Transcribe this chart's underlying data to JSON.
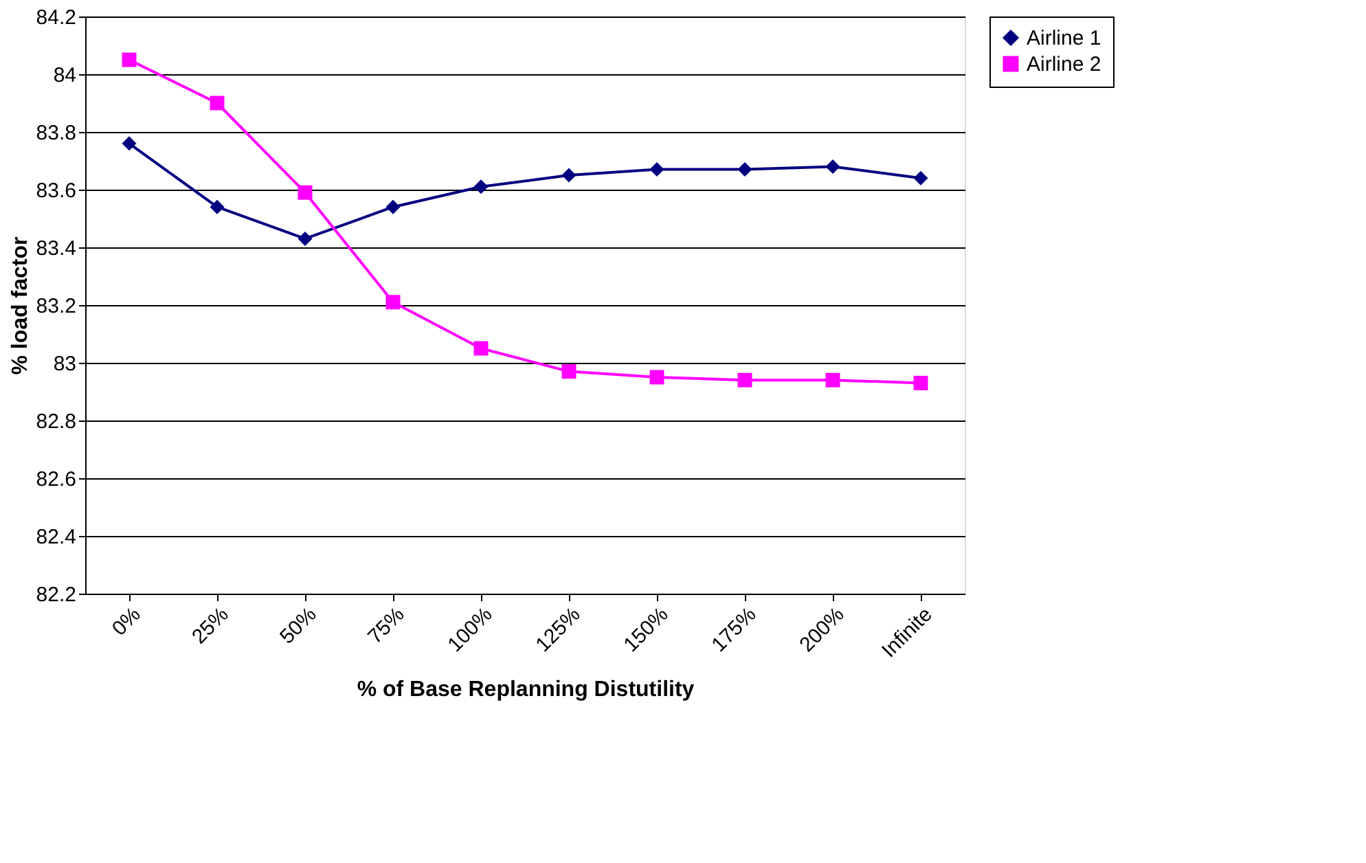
{
  "chart_data": {
    "type": "line",
    "xlabel": "% of Base Replanning Distutility",
    "ylabel": "% load factor",
    "categories": [
      "0%",
      "25%",
      "50%",
      "75%",
      "100%",
      "125%",
      "150%",
      "175%",
      "200%",
      "Infinite"
    ],
    "ylim": [
      82.2,
      84.2
    ],
    "yticks": [
      82.2,
      82.4,
      82.6,
      82.8,
      83,
      83.2,
      83.4,
      83.6,
      83.8,
      84,
      84.2
    ],
    "grid": "y",
    "legend": "right",
    "series": [
      {
        "name": "Airline 1",
        "color": "#000080",
        "marker": "diamond",
        "values": [
          83.76,
          83.54,
          83.43,
          83.54,
          83.61,
          83.65,
          83.67,
          83.67,
          83.68,
          83.64
        ]
      },
      {
        "name": "Airline 2",
        "color": "#ff00ff",
        "marker": "square",
        "values": [
          84.05,
          83.9,
          83.59,
          83.21,
          83.05,
          82.97,
          82.95,
          82.94,
          82.94,
          82.93
        ]
      }
    ]
  }
}
